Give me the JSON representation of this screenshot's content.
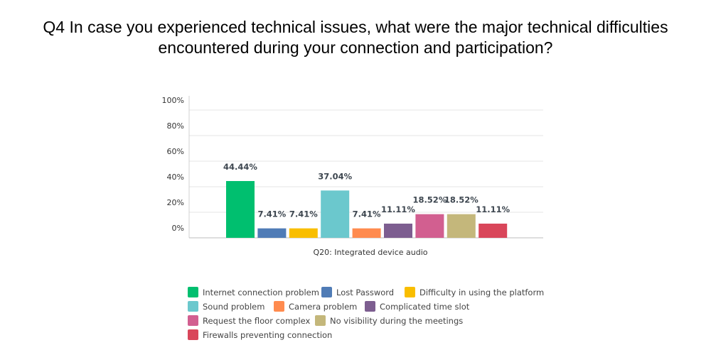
{
  "chart_data": {
    "type": "bar",
    "title": "Q4 In case you experienced technical issues, what were the major technical difficulties encountered during your connection and participation?",
    "categories": [
      "Q20: Integrated device audio"
    ],
    "series": [
      {
        "name": "Internet connection problem",
        "values": [
          44.44
        ],
        "label": "44.44%",
        "color": "#00bf6f"
      },
      {
        "name": "Lost Password",
        "values": [
          7.41
        ],
        "label": "7.41%",
        "color": "#507cb6"
      },
      {
        "name": "Difficulty in using the platform",
        "values": [
          7.41
        ],
        "label": "7.41%",
        "color": "#f9be00"
      },
      {
        "name": "Sound problem",
        "values": [
          37.04
        ],
        "label": "37.04%",
        "color": "#6bc8cd"
      },
      {
        "name": "Camera problem",
        "values": [
          7.41
        ],
        "label": "7.41%",
        "color": "#ff8b4f"
      },
      {
        "name": "Complicated time slot",
        "values": [
          11.11
        ],
        "label": "11.11%",
        "color": "#7d5e90"
      },
      {
        "name": "Request the floor complex",
        "values": [
          18.52
        ],
        "label": "18.52%",
        "color": "#d25f90"
      },
      {
        "name": "No visibility during the meetings",
        "values": [
          18.52
        ],
        "label": "18.52%",
        "color": "#c4b77b"
      },
      {
        "name": "Firewalls preventing connection",
        "values": [
          11.11
        ],
        "label": "11.11%",
        "color": "#d9465a"
      }
    ],
    "y_ticks": [
      "0%",
      "20%",
      "40%",
      "60%",
      "80%",
      "100%"
    ],
    "ylim": [
      0,
      100
    ],
    "xlabel": "",
    "ylabel": "",
    "grid": true,
    "legend_position": "bottom"
  }
}
